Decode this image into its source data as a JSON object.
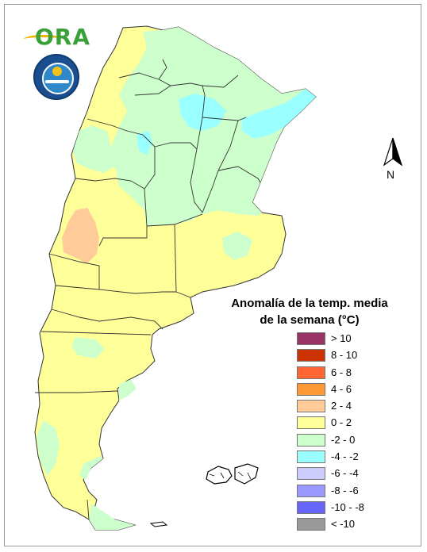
{
  "logos": {
    "ora_text": "ORA",
    "smn_text": "SERVICIO METEOROLOGICO NACIONAL ARGENTINA"
  },
  "north_label": "N",
  "legend": {
    "title_line1": "Anomalía de la temp. media",
    "title_line2": "de la semana (°C)",
    "items": [
      {
        "label": "> 10",
        "color": "#993366"
      },
      {
        "label": "8 - 10",
        "color": "#cc3300"
      },
      {
        "label": "6 - 8",
        "color": "#ff6633"
      },
      {
        "label": "4 - 6",
        "color": "#ff9933"
      },
      {
        "label": "2 - 4",
        "color": "#ffcc99"
      },
      {
        "label": "0 - 2",
        "color": "#ffff99"
      },
      {
        "label": "-2 - 0",
        "color": "#ccffcc"
      },
      {
        "label": "-4 - -2",
        "color": "#99ffff"
      },
      {
        "label": "-6 - -4",
        "color": "#ccccff"
      },
      {
        "label": "-8 - -6",
        "color": "#9999ff"
      },
      {
        "label": "-10 - -8",
        "color": "#6666ff"
      },
      {
        "label": "< -10",
        "color": "#999999"
      }
    ]
  },
  "map": {
    "colors": {
      "warm": "#ffff99",
      "cool": "#ccffcc",
      "cold": "#99ffff",
      "hot": "#ffcc99",
      "border": "#333333"
    }
  }
}
